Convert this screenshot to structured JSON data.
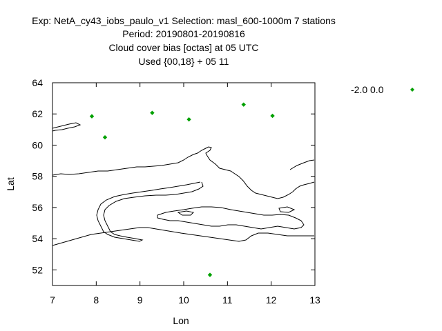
{
  "chart_data": {
    "type": "scatter",
    "title_lines": [
      "Exp: NetA_cy43_iobs_paulo_v1   Selection: masl_600-1000m       7 stations",
      "Period: 20190801-20190816",
      "Cloud cover bias [octas] at  05 UTC",
      "Used {00,18} + 05 11"
    ],
    "xlabel": "Lon",
    "ylabel": "Lat",
    "xlim": [
      7,
      13
    ],
    "ylim": [
      51,
      64
    ],
    "xticks": [
      "7",
      "8",
      "9",
      "10",
      "11",
      "12",
      "13"
    ],
    "yticks": [
      "52",
      "54",
      "56",
      "58",
      "60",
      "62",
      "64"
    ],
    "legend": {
      "label": "-2.0 0.0",
      "placement": "outside-top-right"
    },
    "series": [
      {
        "name": "-2.0 0.0",
        "color": "#00a000",
        "marker": "diamond",
        "points": [
          {
            "x": 7.9,
            "y": 61.85
          },
          {
            "x": 8.2,
            "y": 60.5
          },
          {
            "x": 9.28,
            "y": 62.07
          },
          {
            "x": 10.12,
            "y": 61.65
          },
          {
            "x": 11.37,
            "y": 62.6
          },
          {
            "x": 12.03,
            "y": 61.88
          },
          {
            "x": 10.6,
            "y": 51.68
          }
        ]
      }
    ],
    "background": "coastline map",
    "grid": false
  }
}
